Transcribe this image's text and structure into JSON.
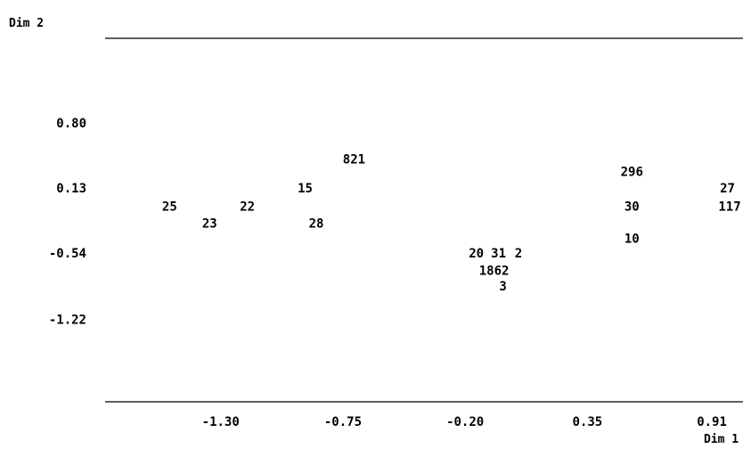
{
  "chart_data": {
    "type": "scatter",
    "xlabel": "Dim 1",
    "ylabel": "Dim 2",
    "xticks": [
      -1.3,
      -0.75,
      -0.2,
      0.35,
      0.91
    ],
    "xtick_labels": [
      "-1.30",
      "-0.75",
      "-0.20",
      "0.35",
      "0.91"
    ],
    "yticks": [
      0.8,
      0.13,
      -0.54,
      -1.22
    ],
    "ytick_labels": [
      "0.80",
      "0.13",
      "-0.54",
      "-1.22"
    ],
    "xlim": [
      -1.82,
      1.05
    ],
    "ylim": [
      -2.07,
      1.67
    ],
    "grid": false,
    "points": [
      {
        "label": "821",
        "x": -0.7,
        "y": 0.43
      },
      {
        "label": "296",
        "x": 0.55,
        "y": 0.3
      },
      {
        "label": "15",
        "x": -0.92,
        "y": 0.13
      },
      {
        "label": "27",
        "x": 0.98,
        "y": 0.13
      },
      {
        "label": "25",
        "x": -1.53,
        "y": -0.06
      },
      {
        "label": "22",
        "x": -1.18,
        "y": -0.06
      },
      {
        "label": "30",
        "x": 0.55,
        "y": -0.06
      },
      {
        "label": "117",
        "x": 0.99,
        "y": -0.06
      },
      {
        "label": "23",
        "x": -1.35,
        "y": -0.23
      },
      {
        "label": "28",
        "x": -0.87,
        "y": -0.23
      },
      {
        "label": "10",
        "x": 0.55,
        "y": -0.39
      },
      {
        "label": "20",
        "x": -0.15,
        "y": -0.54
      },
      {
        "label": "31",
        "x": -0.05,
        "y": -0.54
      },
      {
        "label": "2",
        "x": 0.04,
        "y": -0.54
      },
      {
        "label": "1862",
        "x": -0.07,
        "y": -0.72
      },
      {
        "label": "3",
        "x": -0.03,
        "y": -0.88
      }
    ]
  }
}
